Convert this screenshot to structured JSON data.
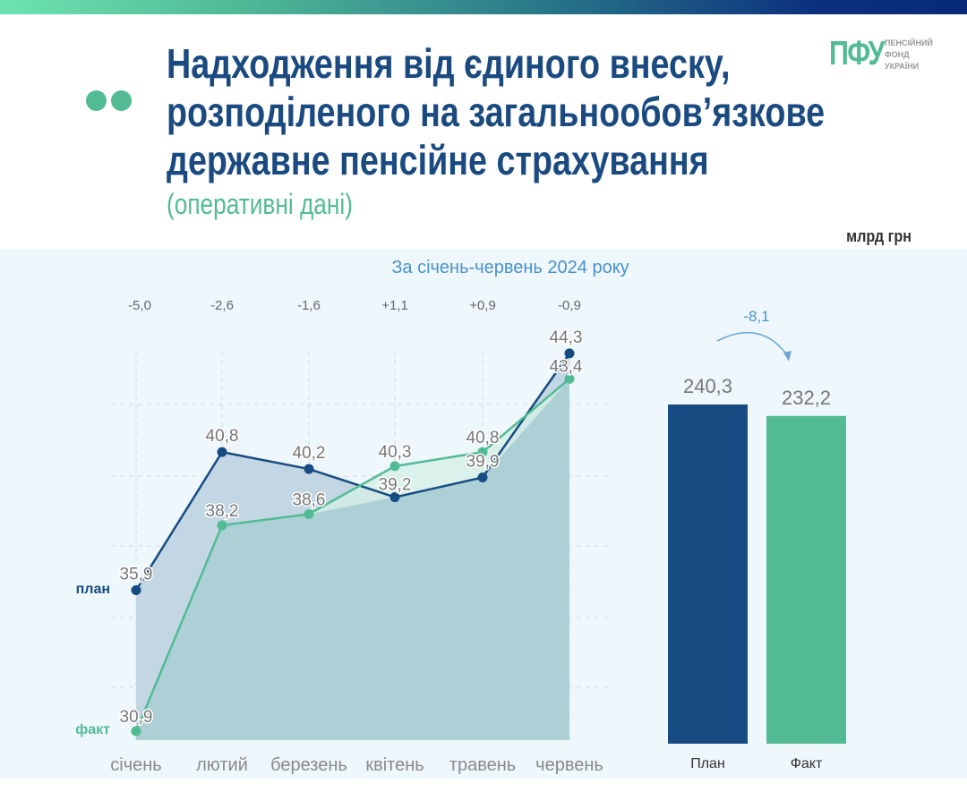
{
  "header": {
    "title_lines": [
      "Надходження від єдиного внеску,",
      "розподіленого на загальнообов’язкове",
      "державне пенсійне страхування"
    ],
    "subtitle": "(оперативні дані)",
    "unit": "млрд грн",
    "logo": {
      "mark": "ПФУ",
      "text_lines": [
        "ПЕНСІЙНИЙ",
        "ФОНД",
        "УКРАЇНИ"
      ]
    }
  },
  "colors": {
    "plan": "#174c82",
    "fact": "#52bb94",
    "title": "#1a4a80",
    "accent": "#4b91cc"
  },
  "chart_data": [
    {
      "type": "area",
      "title": "За січень-червень 2024 року",
      "categories": [
        "січень",
        "лютий",
        "березень",
        "квітень",
        "травень",
        "червень"
      ],
      "series": [
        {
          "name": "план",
          "values": [
            35.9,
            40.8,
            40.2,
            39.2,
            39.9,
            44.3
          ]
        },
        {
          "name": "факт",
          "values": [
            30.9,
            38.2,
            38.6,
            40.3,
            40.8,
            43.4
          ]
        }
      ],
      "differences": [
        "-5,0",
        "-2,6",
        "-1,6",
        "+1,1",
        "+0,9",
        "-0,9"
      ],
      "value_labels": {
        "план": [
          "35,9",
          "40,8",
          "40,2",
          "39,2",
          "39,9",
          "44,3"
        ],
        "факт": [
          "30,9",
          "38,2",
          "38,6",
          "40,3",
          "40,8",
          "43,4"
        ]
      },
      "grid": true
    },
    {
      "type": "bar",
      "categories": [
        "План",
        "Факт"
      ],
      "values": [
        240.3,
        232.2
      ],
      "value_labels": [
        "240,3",
        "232,2"
      ],
      "difference": "-8,1",
      "ylim": [
        0,
        240.3
      ]
    }
  ]
}
